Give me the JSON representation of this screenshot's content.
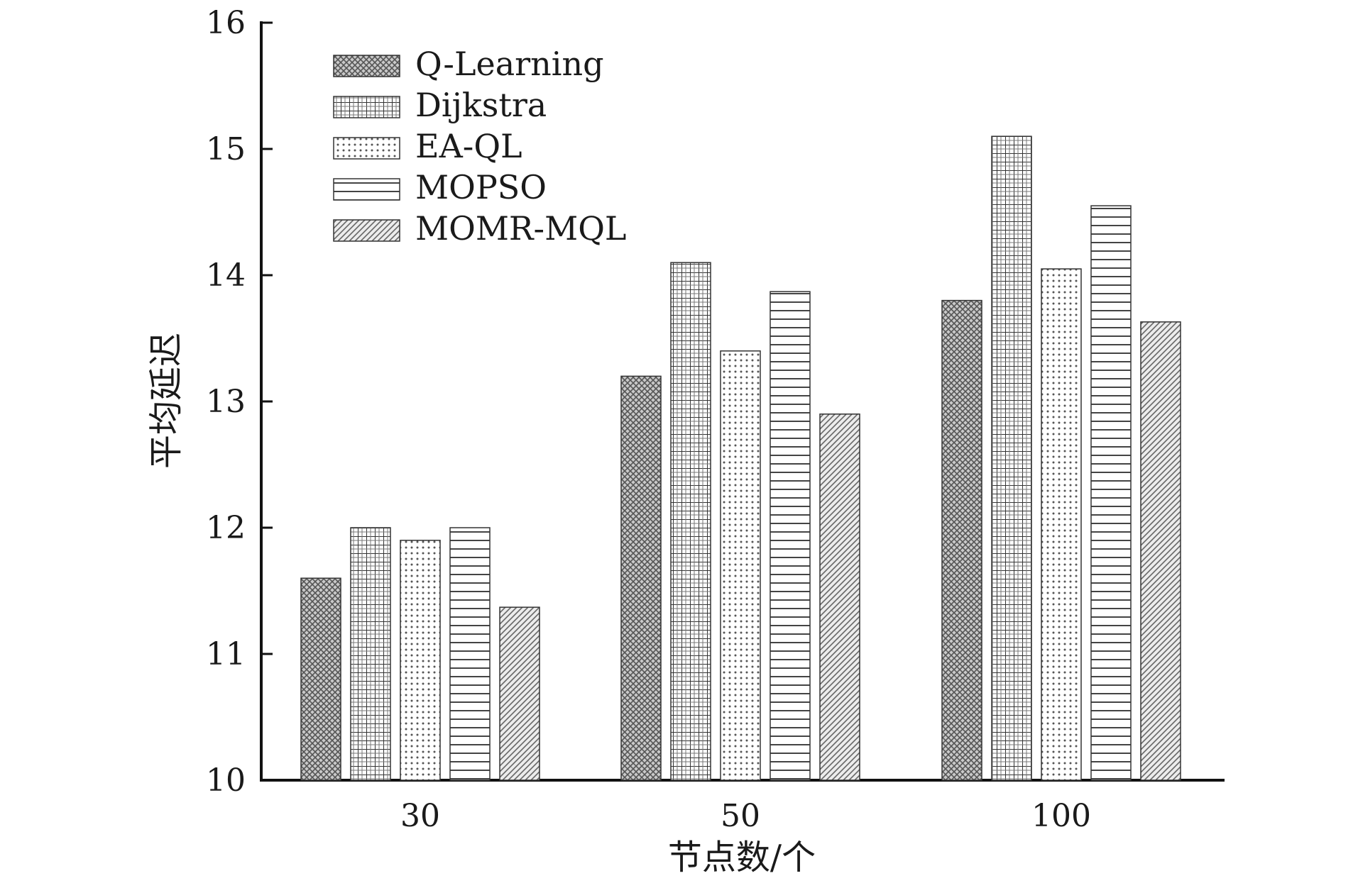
{
  "chart_data": {
    "type": "bar",
    "xlabel": "节点数/个",
    "ylabel": "平均延迟",
    "categories": [
      "30",
      "50",
      "100"
    ],
    "ylim": [
      10,
      16
    ],
    "yticks": [
      10,
      11,
      12,
      13,
      14,
      15,
      16
    ],
    "legend_position": "top-left",
    "grid": false,
    "series": [
      {
        "name": "Q-Learning",
        "values": [
          11.6,
          13.2,
          13.8
        ],
        "pattern": "crosshatch-dense"
      },
      {
        "name": "Dijkstra",
        "values": [
          12.0,
          14.1,
          15.1
        ],
        "pattern": "grid"
      },
      {
        "name": "EA-QL",
        "values": [
          11.9,
          13.4,
          14.05
        ],
        "pattern": "dots"
      },
      {
        "name": "MOPSO",
        "values": [
          12.0,
          13.87,
          14.55
        ],
        "pattern": "horizontal-lines"
      },
      {
        "name": "MOMR-MQL",
        "values": [
          11.37,
          12.9,
          13.63
        ],
        "pattern": "diagonal-lines"
      }
    ]
  }
}
